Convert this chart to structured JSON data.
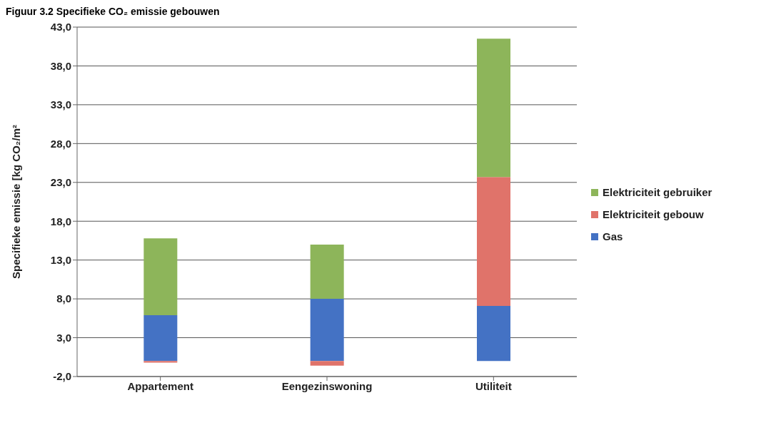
{
  "chart_data": {
    "type": "bar",
    "title": "Figuur 3.2 Specifieke CO₂ emissie gebouwen",
    "ylabel": "Specifieke emissie [kg CO₂/m²",
    "categories": [
      "Appartement",
      "Eengezinswoning",
      "Utiliteit"
    ],
    "stacked": true,
    "series": [
      {
        "name": "Gas",
        "color": "#4472c4",
        "values": [
          5.9,
          8.0,
          7.1
        ]
      },
      {
        "name": "Elektriciteit gebouw",
        "color": "#e0736a",
        "values": [
          -0.2,
          -0.6,
          16.6
        ]
      },
      {
        "name": "Elektriciteit gebruiker",
        "color": "#8db55a",
        "values": [
          9.9,
          7.0,
          17.8
        ]
      }
    ],
    "ylim": [
      -2,
      43
    ],
    "yticks": [
      {
        "value": -2,
        "label": "-2,0"
      },
      {
        "value": 3,
        "label": "3,0"
      },
      {
        "value": 8,
        "label": "8,0"
      },
      {
        "value": 13,
        "label": "13,0"
      },
      {
        "value": 18,
        "label": "18,0"
      },
      {
        "value": 23,
        "label": "23,0"
      },
      {
        "value": 28,
        "label": "28,0"
      },
      {
        "value": 33,
        "label": "33,0"
      },
      {
        "value": 38,
        "label": "38,0"
      },
      {
        "value": 43,
        "label": "43,0"
      }
    ],
    "grid": "y",
    "legend": "right"
  }
}
